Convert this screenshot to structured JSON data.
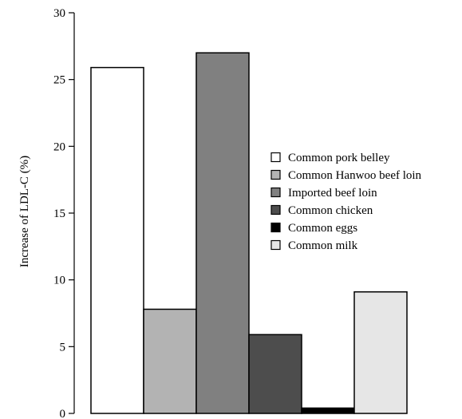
{
  "chart_data": {
    "type": "bar",
    "title": "",
    "xlabel": "",
    "ylabel": "Increase of LDL-C (%)",
    "ylim": [
      0,
      30
    ],
    "yticks": [
      0,
      5,
      10,
      15,
      20,
      25,
      30
    ],
    "grid": false,
    "legend_position": "right",
    "categories": [
      "Common pork belley",
      "Common Hanwoo beef loin",
      "Imported beef loin",
      "Common chicken",
      "Common eggs",
      "Common milk"
    ],
    "values": [
      25.9,
      7.8,
      27.0,
      5.9,
      0.4,
      9.1
    ],
    "colors": [
      "#ffffff",
      "#b3b3b3",
      "#808080",
      "#4d4d4d",
      "#000000",
      "#e6e6e6"
    ]
  }
}
